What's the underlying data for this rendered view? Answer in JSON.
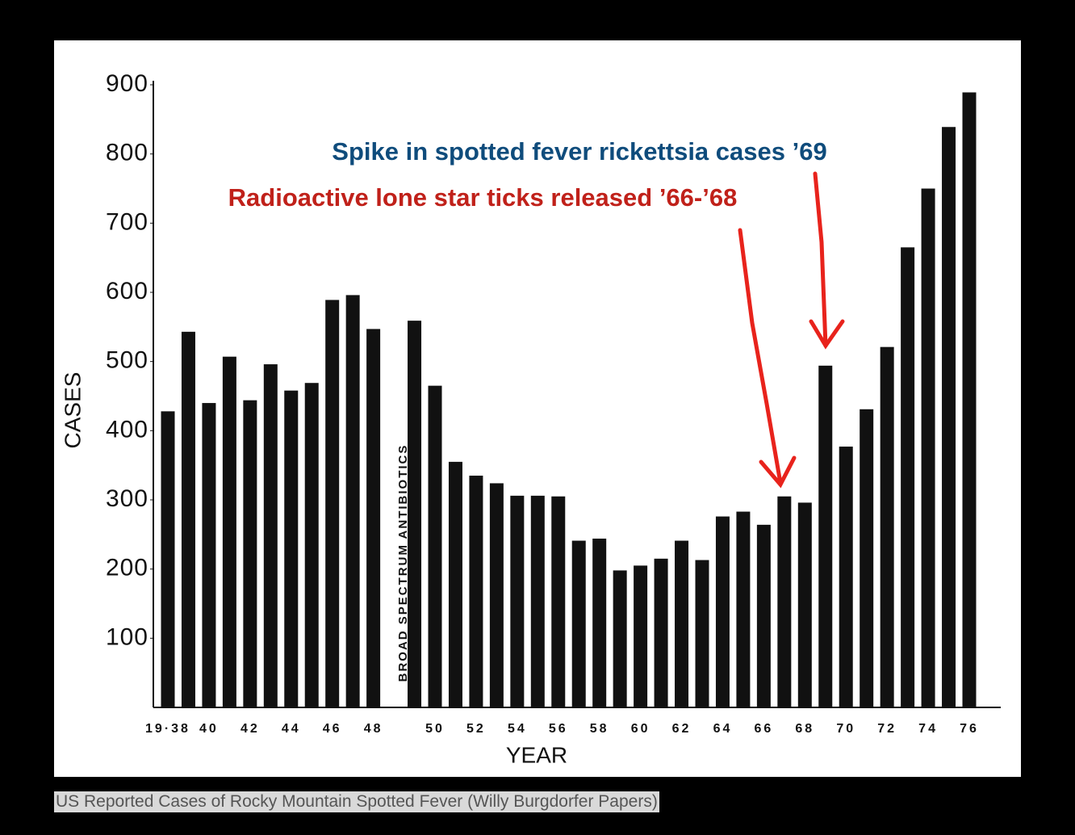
{
  "caption": "US Reported Cases of Rocky Mountain Spotted Fever (Willy Burgdorfer Papers)",
  "chart_data": {
    "type": "bar",
    "x_label": "YEAR",
    "y_label": "CASES",
    "annotations": [
      "Spike in spotted fever rickettsia cases ’69",
      "Radioactive lone star ticks released ’66-’68",
      "BROAD SPECTRUM ANTIBIOTICS"
    ],
    "color": "#111111",
    "categories": [
      "19·38",
      null,
      "40",
      null,
      "42",
      null,
      "44",
      null,
      "46",
      null,
      "48",
      null,
      null,
      "50",
      null,
      "52",
      null,
      "54",
      null,
      "56",
      null,
      "58",
      null,
      "60",
      null,
      "62",
      null,
      "64",
      null,
      "66",
      null,
      "68",
      null,
      "70",
      null,
      "72",
      null,
      "74",
      null,
      "76"
    ],
    "values": [
      428,
      543,
      440,
      507,
      444,
      496,
      458,
      469,
      589,
      596,
      547,
      null,
      559,
      465,
      355,
      335,
      324,
      306,
      306,
      305,
      241,
      244,
      198,
      205,
      215,
      241,
      213,
      276,
      283,
      264,
      305,
      296,
      494,
      377,
      431,
      521,
      665,
      750,
      839,
      889
    ],
    "ylim": [
      0,
      900
    ],
    "yticks": [
      100,
      200,
      300,
      400,
      500,
      600,
      700,
      800,
      900
    ],
    "grid": false
  }
}
